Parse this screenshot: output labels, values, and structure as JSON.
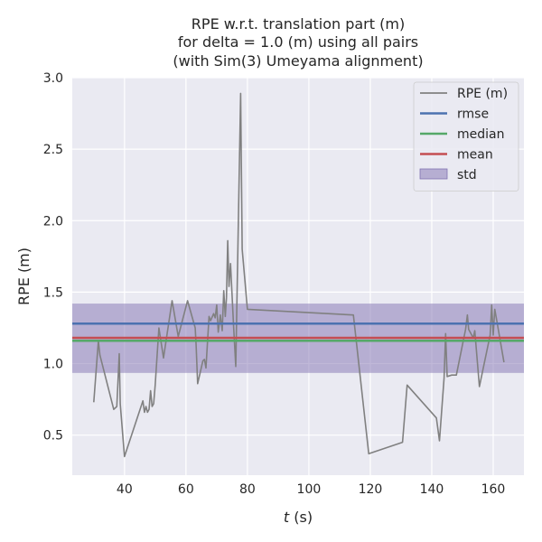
{
  "chart_data": {
    "type": "line",
    "title": [
      "RPE w.r.t. translation part (m)",
      "for delta = 1.0 (m) using all pairs",
      "(with Sim(3) Umeyama alignment)"
    ],
    "xlabel_italic": "t",
    "xlabel_rest": " (s)",
    "ylabel": "RPE (m)",
    "xlim": [
      23,
      170
    ],
    "ylim": [
      0.22,
      3.0
    ],
    "xticks": [
      40,
      60,
      80,
      100,
      120,
      140,
      160
    ],
    "yticks": [
      0.5,
      1.0,
      1.5,
      2.0,
      2.5,
      3.0
    ],
    "ytick_labels": [
      "0.5",
      "1.0",
      "1.5",
      "2.0",
      "2.5",
      "3.0"
    ],
    "grid": true,
    "legend_position": "top-right",
    "colors": {
      "background": "#EAEAF2",
      "grid": "#FFFFFF",
      "rpe": "#808080",
      "rmse": "#4C72B0",
      "median": "#55A868",
      "mean": "#C44E52",
      "std": "#8172B2"
    },
    "legend": [
      {
        "label": "RPE (m)",
        "kind": "line",
        "color": "#808080"
      },
      {
        "label": "rmse",
        "kind": "line",
        "color": "#4C72B0"
      },
      {
        "label": "median",
        "kind": "line",
        "color": "#55A868"
      },
      {
        "label": "mean",
        "kind": "line",
        "color": "#C44E52"
      },
      {
        "label": "std",
        "kind": "patch",
        "color": "#8172B2"
      }
    ],
    "stats": {
      "rmse": 1.28,
      "median": 1.16,
      "mean": 1.18,
      "std_band": [
        0.935,
        1.42
      ]
    },
    "series": [
      {
        "name": "RPE (m)",
        "x": [
          30.0,
          31.5,
          32.0,
          36.5,
          37.5,
          38.0,
          38.3,
          38.6,
          40.0,
          46.0,
          46.5,
          47.0,
          47.5,
          48.0,
          48.5,
          49.0,
          49.5,
          50.0,
          51.2,
          52.7,
          55.5,
          57.5,
          60.5,
          63.0,
          63.3,
          63.8,
          65.5,
          66.0,
          66.5,
          67.5,
          68.0,
          69.0,
          69.5,
          70.0,
          70.5,
          71.2,
          71.8,
          72.3,
          72.8,
          73.2,
          73.6,
          74.0,
          74.5,
          75.5,
          76.2,
          77.8,
          78.3,
          80.0,
          114.5,
          119.5,
          130.5,
          132.0,
          141.5,
          142.5,
          144.0,
          144.5,
          145.0,
          146.5,
          148.0,
          151.0,
          151.6,
          152.0,
          153.5,
          154.0,
          155.5,
          159.0,
          159.5,
          160.0,
          160.5,
          161.0,
          163.5
        ],
        "y": [
          0.73,
          1.16,
          1.06,
          0.68,
          0.7,
          0.93,
          1.07,
          0.72,
          0.35,
          0.74,
          0.66,
          0.7,
          0.66,
          0.68,
          0.81,
          0.7,
          0.72,
          0.85,
          1.25,
          1.04,
          1.44,
          1.19,
          1.44,
          1.25,
          1.13,
          0.86,
          1.02,
          1.03,
          0.97,
          1.33,
          1.3,
          1.35,
          1.32,
          1.41,
          1.22,
          1.34,
          1.23,
          1.51,
          1.33,
          1.46,
          1.86,
          1.54,
          1.7,
          1.26,
          0.98,
          2.89,
          1.8,
          1.38,
          1.34,
          0.37,
          0.45,
          0.85,
          0.62,
          0.46,
          0.9,
          1.21,
          0.91,
          0.92,
          0.92,
          1.24,
          1.34,
          1.24,
          1.18,
          1.23,
          0.84,
          1.2,
          1.41,
          1.2,
          1.38,
          1.32,
          1.01
        ]
      }
    ]
  }
}
